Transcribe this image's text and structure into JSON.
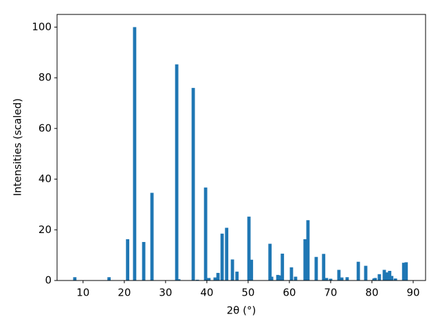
{
  "chart_data": {
    "type": "bar",
    "xlabel": "2θ (°)",
    "ylabel": "Intensities (scaled)",
    "x": [
      8.0,
      16.3,
      20.8,
      22.5,
      24.7,
      26.7,
      32.7,
      33.2,
      36.7,
      37.7,
      39.7,
      40.5,
      42.0,
      42.7,
      43.7,
      44.8,
      46.2,
      47.3,
      50.2,
      50.8,
      55.3,
      55.7,
      57.2,
      57.7,
      58.3,
      60.5,
      61.5,
      63.8,
      64.5,
      66.5,
      68.3,
      69.0,
      70.0,
      72.0,
      72.7,
      74.0,
      76.7,
      78.5,
      80.5,
      80.8,
      81.8,
      83.0,
      83.7,
      84.3,
      84.8,
      85.7,
      87.7,
      88.3
    ],
    "values": [
      1.3,
      1.3,
      16.3,
      100,
      15.2,
      34.6,
      85.3,
      0.5,
      76,
      0.3,
      36.7,
      1,
      1.2,
      3,
      18.5,
      20.8,
      8.3,
      3.5,
      25.2,
      8.2,
      14.5,
      1.5,
      2.2,
      2,
      10.6,
      5.2,
      1.5,
      16.3,
      23.8,
      9.3,
      10.5,
      1,
      0.7,
      4.2,
      1.2,
      1.3,
      7.4,
      5.8,
      0.8,
      1,
      2.5,
      4.2,
      3.2,
      3.8,
      1.8,
      0.8,
      7,
      7.2
    ],
    "color": "#1f77b4",
    "xlim": [
      3.7,
      93
    ],
    "xticks": [
      10,
      20,
      30,
      40,
      50,
      60,
      70,
      80,
      90
    ],
    "ylim": [
      0,
      105
    ],
    "yticks": [
      0,
      20,
      40,
      60,
      80,
      100
    ]
  }
}
